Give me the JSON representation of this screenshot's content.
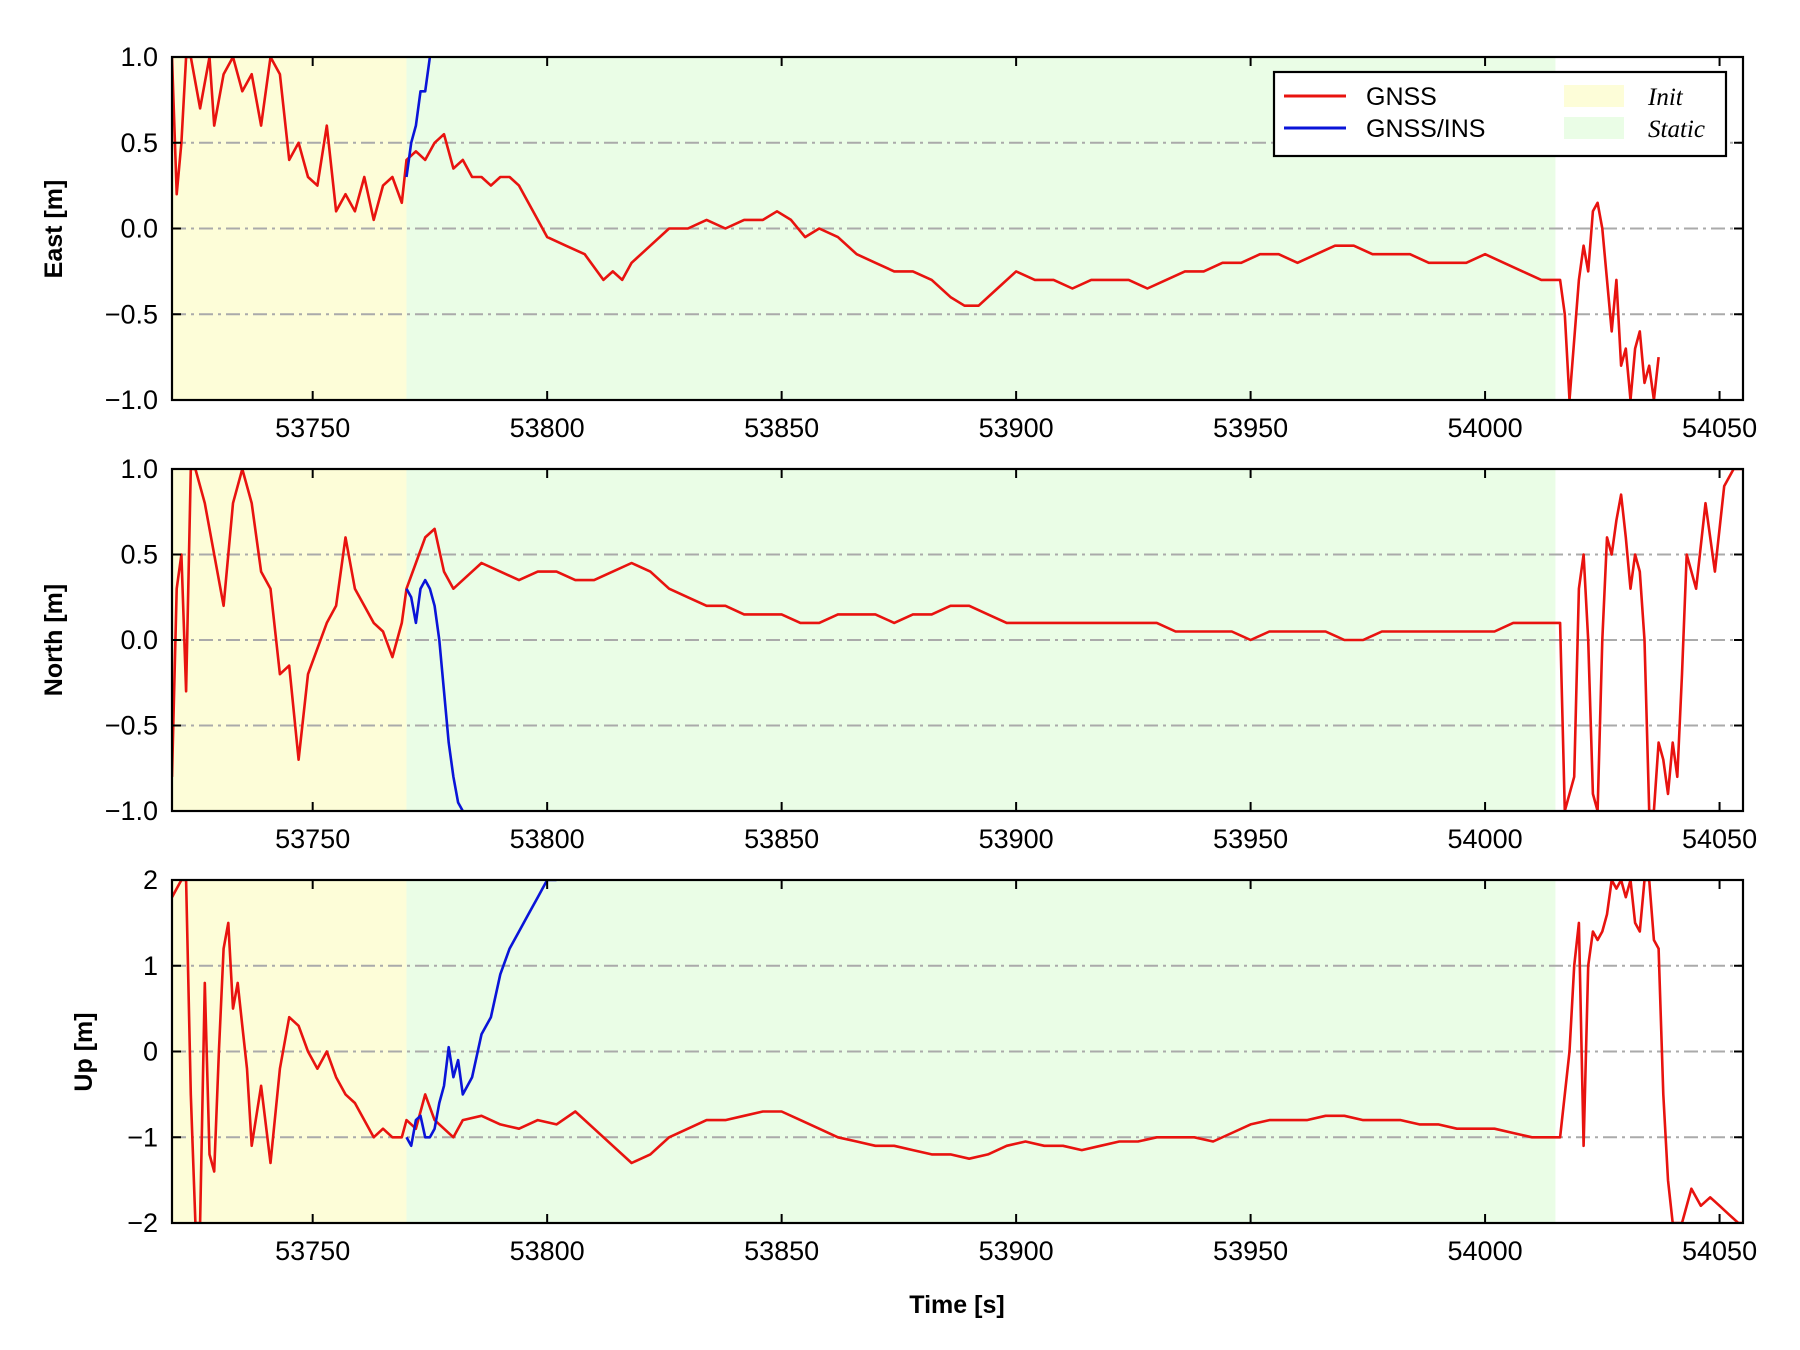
{
  "chart_data": [
    {
      "type": "line",
      "ylabel": "East [m]",
      "xlabel": "",
      "xlim": [
        53720,
        54055
      ],
      "ylim": [
        -1.0,
        1.0
      ],
      "xticks": [
        53750,
        53800,
        53850,
        53900,
        53950,
        54000,
        54050
      ],
      "yticks": [
        -1.0,
        -0.5,
        0.0,
        0.5,
        1.0
      ],
      "ytick_labels": [
        "−1.0",
        "−0.5",
        "0.0",
        "0.5",
        "1.0"
      ],
      "grid": "horizontal dash-dot",
      "legend_placement": "top-right",
      "shaded_regions": [
        {
          "name": "Init",
          "x": [
            53720,
            53770
          ],
          "color": "#fdfdd8"
        },
        {
          "name": "Static",
          "x": [
            53770,
            54015
          ],
          "color": "#eafde6"
        }
      ],
      "series": [
        {
          "name": "GNSS",
          "color": "#e8130f",
          "x": [
            53720,
            53721,
            53722,
            53723,
            53724,
            53726,
            53728,
            53729,
            53731,
            53733,
            53735,
            53737,
            53739,
            53741,
            53743,
            53745,
            53747,
            53749,
            53751,
            53753,
            53755,
            53757,
            53759,
            53761,
            53763,
            53765,
            53767,
            53769,
            53770,
            53772,
            53774,
            53776,
            53778,
            53780,
            53782,
            53784,
            53786,
            53788,
            53790,
            53792,
            53794,
            53796,
            53798,
            53800,
            53804,
            53808,
            53812,
            53814,
            53816,
            53818,
            53822,
            53826,
            53830,
            53834,
            53838,
            53842,
            53846,
            53849,
            53852,
            53855,
            53858,
            53862,
            53866,
            53870,
            53874,
            53878,
            53882,
            53886,
            53889,
            53892,
            53896,
            53900,
            53904,
            53908,
            53912,
            53916,
            53920,
            53924,
            53928,
            53932,
            53936,
            53940,
            53944,
            53948,
            53952,
            53956,
            53960,
            53964,
            53968,
            53972,
            53976,
            53980,
            53984,
            53988,
            53992,
            53996,
            54000,
            54004,
            54008,
            54012,
            54014,
            54016,
            54017,
            54018,
            54020,
            54021,
            54022,
            54023,
            54024,
            54025,
            54026,
            54027,
            54028,
            54029,
            54030,
            54031,
            54032,
            54033,
            54034,
            54035,
            54036,
            54037
          ],
          "values": [
            1.0,
            0.2,
            0.5,
            1.0,
            1.0,
            0.7,
            1.0,
            0.6,
            0.9,
            1.0,
            0.8,
            0.9,
            0.6,
            1.0,
            0.9,
            0.4,
            0.5,
            0.3,
            0.25,
            0.6,
            0.1,
            0.2,
            0.1,
            0.3,
            0.05,
            0.25,
            0.3,
            0.15,
            0.4,
            0.45,
            0.4,
            0.5,
            0.55,
            0.35,
            0.4,
            0.3,
            0.3,
            0.25,
            0.3,
            0.3,
            0.25,
            0.15,
            0.05,
            -0.05,
            -0.1,
            -0.15,
            -0.3,
            -0.25,
            -0.3,
            -0.2,
            -0.1,
            0.0,
            0.0,
            0.05,
            0.0,
            0.05,
            0.05,
            0.1,
            0.05,
            -0.05,
            0.0,
            -0.05,
            -0.15,
            -0.2,
            -0.25,
            -0.25,
            -0.3,
            -0.4,
            -0.45,
            -0.45,
            -0.35,
            -0.25,
            -0.3,
            -0.3,
            -0.35,
            -0.3,
            -0.3,
            -0.3,
            -0.35,
            -0.3,
            -0.25,
            -0.25,
            -0.2,
            -0.2,
            -0.15,
            -0.15,
            -0.2,
            -0.15,
            -0.1,
            -0.1,
            -0.15,
            -0.15,
            -0.15,
            -0.2,
            -0.2,
            -0.2,
            -0.15,
            -0.2,
            -0.25,
            -0.3,
            -0.3,
            -0.3,
            -0.5,
            -1.0,
            -0.3,
            -0.1,
            -0.25,
            0.1,
            0.15,
            0.0,
            -0.3,
            -0.6,
            -0.3,
            -0.8,
            -0.7,
            -1.0,
            -0.7,
            -0.6,
            -0.9,
            -0.8,
            -1.0,
            -0.75
          ]
        },
        {
          "name": "GNSS/INS",
          "color": "#0a14d8",
          "x": [
            53770,
            53771,
            53772,
            53773,
            53774,
            53775
          ],
          "values": [
            0.3,
            0.5,
            0.6,
            0.8,
            0.8,
            1.0
          ]
        }
      ]
    },
    {
      "type": "line",
      "ylabel": "North [m]",
      "xlabel": "",
      "xlim": [
        53720,
        54055
      ],
      "ylim": [
        -1.0,
        1.0
      ],
      "xticks": [
        53750,
        53800,
        53850,
        53900,
        53950,
        54000,
        54050
      ],
      "yticks": [
        -1.0,
        -0.5,
        0.0,
        0.5,
        1.0
      ],
      "ytick_labels": [
        "−1.0",
        "−0.5",
        "0.0",
        "0.5",
        "1.0"
      ],
      "grid": "horizontal dash-dot",
      "shaded_regions": [
        {
          "name": "Init",
          "x": [
            53720,
            53770
          ],
          "color": "#fdfdd8"
        },
        {
          "name": "Static",
          "x": [
            53770,
            54015
          ],
          "color": "#eafde6"
        }
      ],
      "series": [
        {
          "name": "GNSS",
          "color": "#e8130f",
          "x": [
            53720,
            53721,
            53722,
            53723,
            53724,
            53725,
            53727,
            53729,
            53731,
            53733,
            53735,
            53737,
            53739,
            53741,
            53743,
            53745,
            53747,
            53749,
            53751,
            53753,
            53755,
            53757,
            53759,
            53761,
            53763,
            53765,
            53767,
            53769,
            53770,
            53772,
            53774,
            53776,
            53778,
            53780,
            53782,
            53784,
            53786,
            53790,
            53794,
            53798,
            53802,
            53806,
            53810,
            53814,
            53818,
            53822,
            53826,
            53830,
            53834,
            53838,
            53842,
            53846,
            53850,
            53854,
            53858,
            53862,
            53866,
            53870,
            53874,
            53878,
            53882,
            53886,
            53890,
            53894,
            53898,
            53902,
            53906,
            53910,
            53914,
            53918,
            53922,
            53926,
            53930,
            53934,
            53938,
            53942,
            53946,
            53950,
            53954,
            53958,
            53962,
            53966,
            53970,
            53974,
            53978,
            53982,
            53986,
            53990,
            53994,
            53998,
            54002,
            54006,
            54010,
            54014,
            54016,
            54017,
            54019,
            54020,
            54021,
            54022,
            54023,
            54024,
            54025,
            54026,
            54027,
            54028,
            54029,
            54030,
            54031,
            54032,
            54033,
            54034,
            54035,
            54036,
            54037,
            54038,
            54039,
            54040,
            54041,
            54042,
            54043,
            54045,
            54047,
            54049,
            54051,
            54053,
            54055
          ],
          "values": [
            -0.8,
            0.3,
            0.5,
            -0.3,
            1.0,
            1.0,
            0.8,
            0.5,
            0.2,
            0.8,
            1.0,
            0.8,
            0.4,
            0.3,
            -0.2,
            -0.15,
            -0.7,
            -0.2,
            -0.05,
            0.1,
            0.2,
            0.6,
            0.3,
            0.2,
            0.1,
            0.05,
            -0.1,
            0.1,
            0.3,
            0.45,
            0.6,
            0.65,
            0.4,
            0.3,
            0.35,
            0.4,
            0.45,
            0.4,
            0.35,
            0.4,
            0.4,
            0.35,
            0.35,
            0.4,
            0.45,
            0.4,
            0.3,
            0.25,
            0.2,
            0.2,
            0.15,
            0.15,
            0.15,
            0.1,
            0.1,
            0.15,
            0.15,
            0.15,
            0.1,
            0.15,
            0.15,
            0.2,
            0.2,
            0.15,
            0.1,
            0.1,
            0.1,
            0.1,
            0.1,
            0.1,
            0.1,
            0.1,
            0.1,
            0.05,
            0.05,
            0.05,
            0.05,
            0.0,
            0.05,
            0.05,
            0.05,
            0.05,
            0.0,
            0.0,
            0.05,
            0.05,
            0.05,
            0.05,
            0.05,
            0.05,
            0.05,
            0.1,
            0.1,
            0.1,
            0.1,
            -1.0,
            -0.8,
            0.3,
            0.5,
            0.0,
            -0.9,
            -1.0,
            0.0,
            0.6,
            0.5,
            0.7,
            0.85,
            0.6,
            0.3,
            0.5,
            0.4,
            0.0,
            -1.0,
            -1.0,
            -0.6,
            -0.7,
            -0.9,
            -0.6,
            -0.8,
            -0.2,
            0.5,
            0.3,
            0.8,
            0.4,
            0.9,
            1.0,
            1.0
          ]
        },
        {
          "name": "GNSS/INS",
          "color": "#0a14d8",
          "x": [
            53770,
            53771,
            53772,
            53773,
            53774,
            53775,
            53776,
            53777,
            53778,
            53779,
            53780,
            53781,
            53782
          ],
          "values": [
            0.3,
            0.25,
            0.1,
            0.3,
            0.35,
            0.3,
            0.2,
            0.0,
            -0.3,
            -0.6,
            -0.8,
            -0.95,
            -1.0
          ]
        }
      ]
    },
    {
      "type": "line",
      "ylabel": "Up [m]",
      "xlabel": "Time [s]",
      "xlim": [
        53720,
        54055
      ],
      "ylim": [
        -2,
        2
      ],
      "xticks": [
        53750,
        53800,
        53850,
        53900,
        53950,
        54000,
        54050
      ],
      "yticks": [
        -2,
        -1,
        0,
        1,
        2
      ],
      "ytick_labels": [
        "−2",
        "−1",
        "0",
        "1",
        "2"
      ],
      "grid": "horizontal dash-dot",
      "shaded_regions": [
        {
          "name": "Init",
          "x": [
            53720,
            53770
          ],
          "color": "#fdfdd8"
        },
        {
          "name": "Static",
          "x": [
            53770,
            54015
          ],
          "color": "#eafde6"
        }
      ],
      "series": [
        {
          "name": "GNSS",
          "color": "#e8130f",
          "x": [
            53720,
            53722,
            53723,
            53724,
            53725,
            53726,
            53727,
            53728,
            53729,
            53730,
            53731,
            53732,
            53733,
            53734,
            53735,
            53736,
            53737,
            53739,
            53741,
            53743,
            53745,
            53747,
            53749,
            53751,
            53753,
            53755,
            53757,
            53759,
            53761,
            53763,
            53765,
            53767,
            53769,
            53770,
            53772,
            53774,
            53776,
            53778,
            53780,
            53782,
            53786,
            53790,
            53794,
            53798,
            53802,
            53806,
            53810,
            53814,
            53818,
            53822,
            53826,
            53830,
            53834,
            53838,
            53842,
            53846,
            53850,
            53854,
            53858,
            53862,
            53866,
            53870,
            53874,
            53878,
            53882,
            53886,
            53890,
            53894,
            53898,
            53902,
            53906,
            53910,
            53914,
            53918,
            53922,
            53926,
            53930,
            53934,
            53938,
            53942,
            53946,
            53950,
            53954,
            53958,
            53962,
            53966,
            53970,
            53974,
            53978,
            53982,
            53986,
            53990,
            53994,
            53998,
            54002,
            54006,
            54010,
            54014,
            54016,
            54018,
            54019,
            54020,
            54021,
            54022,
            54023,
            54024,
            54025,
            54026,
            54027,
            54028,
            54029,
            54030,
            54031,
            54032,
            54033,
            54034,
            54035,
            54036,
            54037,
            54038,
            54039,
            54040,
            54042,
            54044,
            54046,
            54048,
            54050,
            54052,
            54054,
            54055
          ],
          "values": [
            1.8,
            2.0,
            2.0,
            -0.5,
            -2.0,
            -2.0,
            0.8,
            -1.2,
            -1.4,
            0.0,
            1.2,
            1.5,
            0.5,
            0.8,
            0.3,
            -0.2,
            -1.1,
            -0.4,
            -1.3,
            -0.2,
            0.4,
            0.3,
            0.0,
            -0.2,
            0.0,
            -0.3,
            -0.5,
            -0.6,
            -0.8,
            -1.0,
            -0.9,
            -1.0,
            -1.0,
            -0.8,
            -0.9,
            -0.5,
            -0.8,
            -0.9,
            -1.0,
            -0.8,
            -0.75,
            -0.85,
            -0.9,
            -0.8,
            -0.85,
            -0.7,
            -0.9,
            -1.1,
            -1.3,
            -1.2,
            -1.0,
            -0.9,
            -0.8,
            -0.8,
            -0.75,
            -0.7,
            -0.7,
            -0.8,
            -0.9,
            -1.0,
            -1.05,
            -1.1,
            -1.1,
            -1.15,
            -1.2,
            -1.2,
            -1.25,
            -1.2,
            -1.1,
            -1.05,
            -1.1,
            -1.1,
            -1.15,
            -1.1,
            -1.05,
            -1.05,
            -1.0,
            -1.0,
            -1.0,
            -1.05,
            -0.95,
            -0.85,
            -0.8,
            -0.8,
            -0.8,
            -0.75,
            -0.75,
            -0.8,
            -0.8,
            -0.8,
            -0.85,
            -0.85,
            -0.9,
            -0.9,
            -0.9,
            -0.95,
            -1.0,
            -1.0,
            -1.0,
            0.0,
            1.0,
            1.5,
            -1.1,
            1.0,
            1.4,
            1.3,
            1.4,
            1.6,
            2.0,
            1.9,
            2.0,
            1.8,
            2.0,
            1.5,
            1.4,
            2.0,
            2.0,
            1.3,
            1.2,
            -0.5,
            -1.5,
            -2.0,
            -2.0,
            -1.6,
            -1.8,
            -1.7,
            -1.8,
            -1.9,
            -2.0,
            -2.0
          ]
        },
        {
          "name": "GNSS/INS",
          "color": "#0a14d8",
          "x": [
            53770,
            53771,
            53772,
            53773,
            53774,
            53775,
            53776,
            53777,
            53778,
            53779,
            53780,
            53781,
            53782,
            53784,
            53786,
            53788,
            53790,
            53792,
            53794,
            53796,
            53798,
            53800,
            53802
          ],
          "values": [
            -1.0,
            -1.1,
            -0.8,
            -0.75,
            -1.0,
            -1.0,
            -0.9,
            -0.6,
            -0.4,
            0.05,
            -0.3,
            -0.1,
            -0.5,
            -0.3,
            0.2,
            0.4,
            0.9,
            1.2,
            1.4,
            1.6,
            1.8,
            2.0,
            2.0
          ]
        }
      ]
    }
  ],
  "legend": [
    {
      "label": "GNSS",
      "kind": "line",
      "color": "#e8130f",
      "style": "normal"
    },
    {
      "label": "GNSS/INS",
      "kind": "line",
      "color": "#0a14d8",
      "style": "normal"
    },
    {
      "label": "Init",
      "kind": "patch",
      "color": "#fdfdd8",
      "style": "italic"
    },
    {
      "label": "Static",
      "kind": "patch",
      "color": "#eafde6",
      "style": "italic"
    }
  ],
  "xtick_labels": [
    "53750",
    "53800",
    "53850",
    "53900",
    "53950",
    "54000",
    "54050"
  ],
  "xaxis_title": "Time [s]",
  "colors": {
    "grid": "#aaaaaa",
    "axis": "#000000"
  }
}
